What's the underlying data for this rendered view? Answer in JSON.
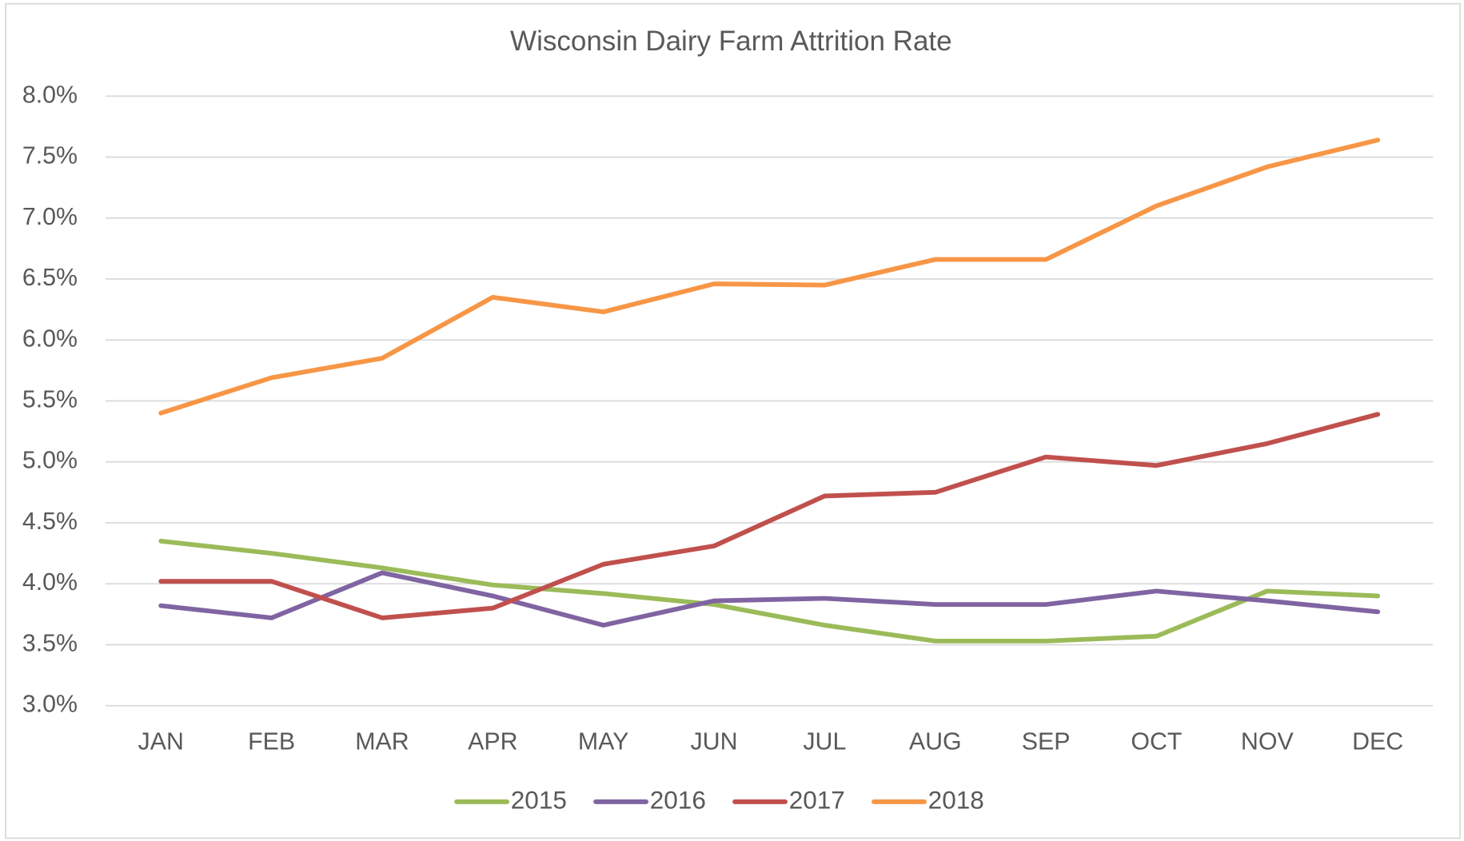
{
  "chart_data": {
    "type": "line",
    "title": "Wisconsin Dairy Farm Attrition Rate",
    "categories": [
      "JAN",
      "FEB",
      "MAR",
      "APR",
      "MAY",
      "JUN",
      "JUL",
      "AUG",
      "SEP",
      "OCT",
      "NOV",
      "DEC"
    ],
    "series": [
      {
        "name": "2015",
        "color": "#9bbb59",
        "values": [
          4.35,
          4.25,
          4.13,
          3.99,
          3.92,
          3.83,
          3.66,
          3.53,
          3.53,
          3.57,
          3.94,
          3.9
        ]
      },
      {
        "name": "2016",
        "color": "#8064a2",
        "values": [
          3.82,
          3.72,
          4.09,
          3.9,
          3.66,
          3.86,
          3.88,
          3.83,
          3.83,
          3.94,
          3.86,
          3.77
        ]
      },
      {
        "name": "2017",
        "color": "#c0504d",
        "values": [
          4.02,
          4.02,
          3.72,
          3.8,
          4.16,
          4.31,
          4.72,
          4.75,
          5.04,
          4.97,
          5.15,
          5.39
        ]
      },
      {
        "name": "2018",
        "color": "#f79646",
        "values": [
          5.4,
          5.69,
          5.85,
          6.35,
          6.23,
          6.46,
          6.45,
          6.66,
          6.66,
          7.1,
          7.42,
          7.64
        ]
      }
    ],
    "ylim": [
      3,
      8
    ],
    "yticks": [
      {
        "value": 3,
        "label": "3.0%"
      },
      {
        "value": 3.5,
        "label": "3.5%"
      },
      {
        "value": 4,
        "label": "4.0%"
      },
      {
        "value": 4.5,
        "label": "4.5%"
      },
      {
        "value": 5,
        "label": "5.0%"
      },
      {
        "value": 5.5,
        "label": "5.5%"
      },
      {
        "value": 6,
        "label": "6.0%"
      },
      {
        "value": 6.5,
        "label": "6.5%"
      },
      {
        "value": 7,
        "label": "7.0%"
      },
      {
        "value": 7.5,
        "label": "7.5%"
      },
      {
        "value": 8,
        "label": "8.0%"
      }
    ],
    "grid": true,
    "legend": "bottom"
  }
}
